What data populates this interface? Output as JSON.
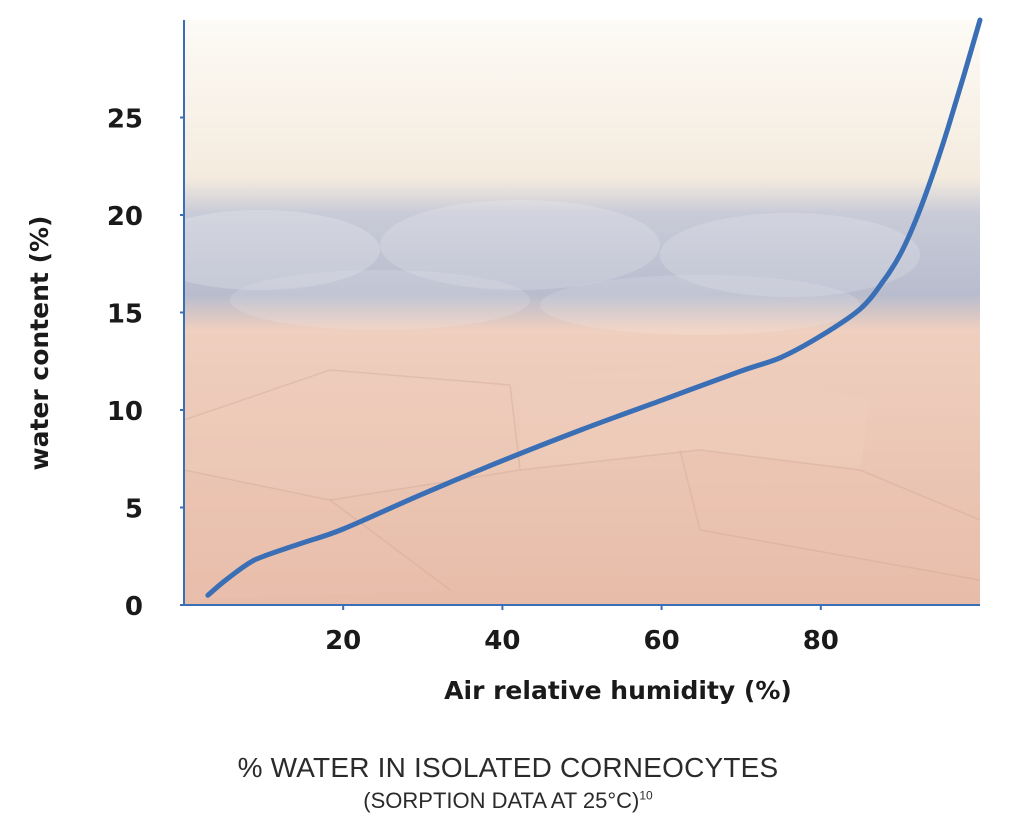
{
  "chart_data": {
    "type": "line",
    "title": "% WATER IN ISOLATED CORNEOCYTES",
    "subtitle": "(SORPTION DATA AT 25°C)",
    "subtitle_ref": "10",
    "xlabel": "Air relative humidity (%)",
    "ylabel": "water content (%)",
    "xlim": [
      0,
      100
    ],
    "ylim": [
      0,
      30
    ],
    "x_ticks": [
      20,
      40,
      60,
      80
    ],
    "y_ticks": [
      0,
      5,
      10,
      15,
      20,
      25
    ],
    "grid": false,
    "series": [
      {
        "x": [
          3,
          5,
          8,
          10,
          15,
          20,
          30,
          40,
          50,
          60,
          70,
          75,
          80,
          85,
          88,
          90,
          92,
          94,
          96,
          98,
          100
        ],
        "y": [
          0.5,
          1.2,
          2.1,
          2.5,
          3.2,
          3.9,
          5.7,
          7.4,
          9.0,
          10.5,
          12.0,
          12.7,
          13.8,
          15.2,
          16.7,
          18.0,
          19.8,
          22.0,
          24.5,
          27.2,
          30.0
        ]
      }
    ],
    "colors": {
      "line": "#3b6fb5",
      "axis": "#3b6fb5"
    }
  }
}
